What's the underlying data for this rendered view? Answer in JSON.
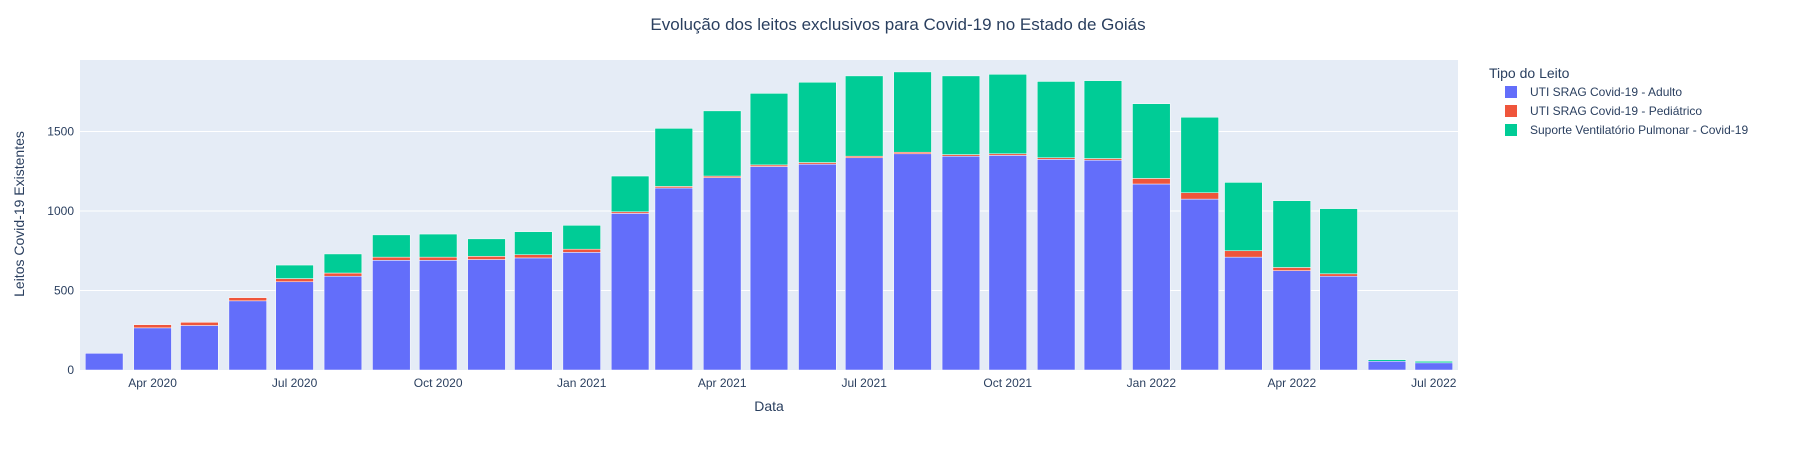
{
  "chart_data": {
    "type": "bar",
    "barmode": "stack",
    "title": "Evolução dos leitos exclusivos para Covid-19 no Estado de Goiás",
    "xlabel": "Data",
    "ylabel": "Leitos Covid-19 Existentes",
    "ylim": [
      0,
      1950
    ],
    "y_ticks": [
      0,
      500,
      1000,
      1500
    ],
    "x_ticks": [
      {
        "date": "2020-04-01",
        "label": "Apr 2020"
      },
      {
        "date": "2020-07-01",
        "label": "Jul 2020"
      },
      {
        "date": "2020-10-01",
        "label": "Oct 2020"
      },
      {
        "date": "2021-01-01",
        "label": "Jan 2021"
      },
      {
        "date": "2021-04-01",
        "label": "Apr 2021"
      },
      {
        "date": "2021-07-01",
        "label": "Jul 2021"
      },
      {
        "date": "2021-10-01",
        "label": "Oct 2021"
      },
      {
        "date": "2022-01-01",
        "label": "Jan 2022"
      },
      {
        "date": "2022-04-01",
        "label": "Apr 2022"
      },
      {
        "date": "2022-07-01",
        "label": "Jul 2022"
      }
    ],
    "x": [
      "2020-03-01",
      "2020-04-01",
      "2020-05-01",
      "2020-06-01",
      "2020-07-01",
      "2020-08-01",
      "2020-09-01",
      "2020-10-01",
      "2020-11-01",
      "2020-12-01",
      "2021-01-01",
      "2021-02-01",
      "2021-03-01",
      "2021-04-01",
      "2021-05-01",
      "2021-06-01",
      "2021-07-01",
      "2021-08-01",
      "2021-09-01",
      "2021-10-01",
      "2021-11-01",
      "2021-12-01",
      "2022-01-01",
      "2022-02-01",
      "2022-03-01",
      "2022-04-01",
      "2022-05-01",
      "2022-06-01",
      "2022-07-01"
    ],
    "grid": true,
    "legend_title": "Tipo do Leito",
    "legend_position": "right",
    "series": [
      {
        "name": "UTI SRAG Covid-19 - Adulto",
        "color": "#636efa",
        "values": [
          105,
          265,
          280,
          435,
          555,
          590,
          690,
          690,
          695,
          705,
          740,
          985,
          1145,
          1210,
          1280,
          1295,
          1335,
          1360,
          1345,
          1350,
          1325,
          1320,
          1170,
          1075,
          710,
          625,
          590,
          55,
          45
        ]
      },
      {
        "name": "UTI SRAG Covid-19 - Pediátrico",
        "color": "#ef553b",
        "values": [
          0,
          20,
          20,
          20,
          20,
          20,
          20,
          20,
          20,
          20,
          20,
          10,
          10,
          10,
          10,
          10,
          10,
          10,
          10,
          10,
          10,
          10,
          35,
          40,
          40,
          20,
          15,
          0,
          0
        ]
      },
      {
        "name": "Suporte Ventilatório Pulmonar - Covid-19",
        "color": "#00cc96",
        "values": [
          0,
          0,
          0,
          0,
          85,
          120,
          140,
          145,
          110,
          145,
          150,
          225,
          365,
          410,
          450,
          505,
          505,
          505,
          495,
          500,
          480,
          490,
          470,
          475,
          430,
          420,
          410,
          10,
          10
        ]
      }
    ]
  }
}
